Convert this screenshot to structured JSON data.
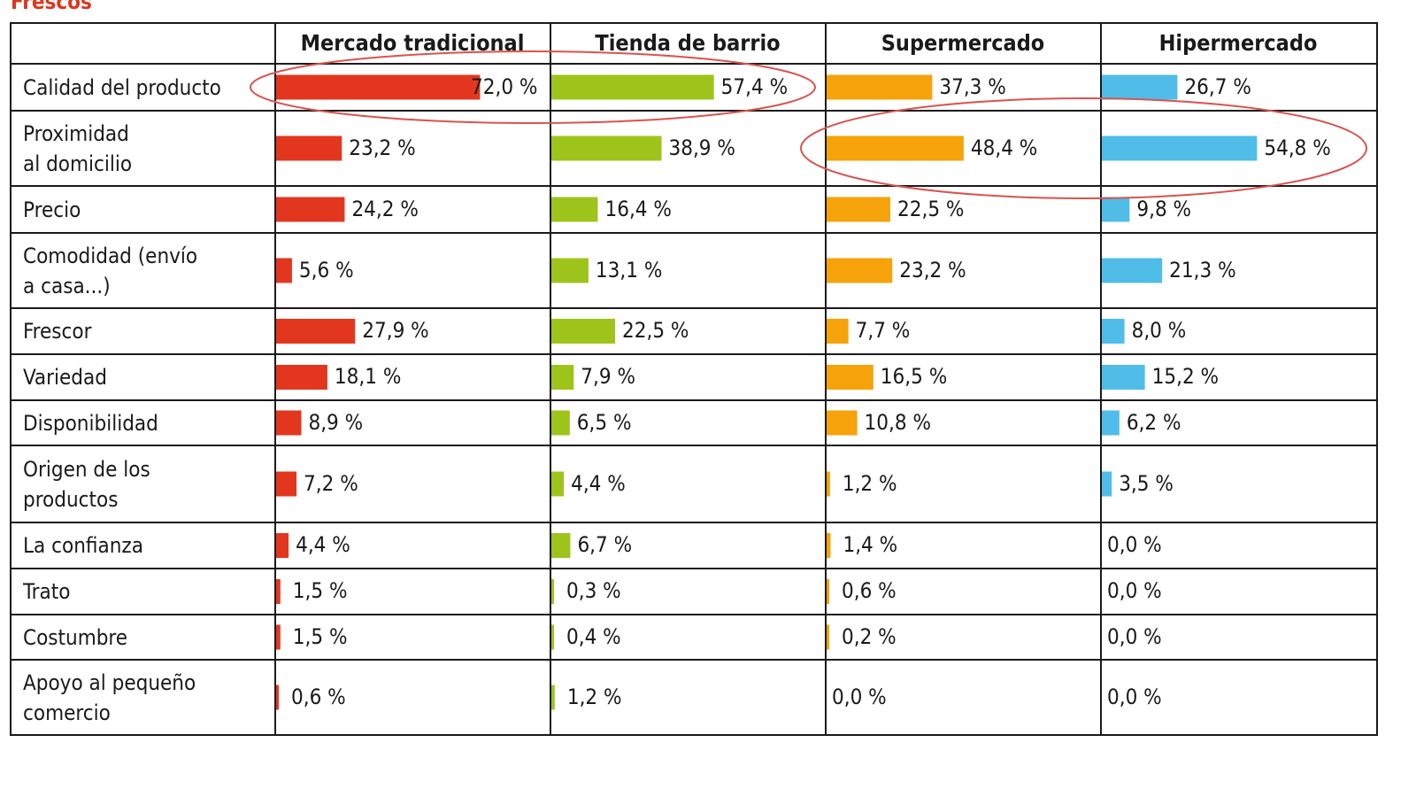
{
  "section_title": "Frescos",
  "chart_data": {
    "type": "bar",
    "title": "Frescos",
    "orientation": "horizontal",
    "categories": [
      "Calidad del producto",
      "Proximidad al domicilio",
      "Precio",
      "Comodidad (envío a casa...)",
      "Frescor",
      "Variedad",
      "Disponibilidad",
      "Origen de los productos",
      "La confianza",
      "Trato",
      "Costumbre",
      "Apoyo al pequeño comercio"
    ],
    "category_lines": [
      [
        "Calidad del producto"
      ],
      [
        "Proximidad",
        "al domicilio"
      ],
      [
        "Precio"
      ],
      [
        "Comodidad (envío",
        "a casa...)"
      ],
      [
        "Frescor"
      ],
      [
        "Variedad"
      ],
      [
        "Disponibilidad"
      ],
      [
        "Origen de los",
        "productos"
      ],
      [
        "La confianza"
      ],
      [
        "Trato"
      ],
      [
        "Costumbre"
      ],
      [
        "Apoyo al pequeño",
        "comercio"
      ]
    ],
    "series": [
      {
        "name": "Mercado tradicional",
        "color": "#e2371e",
        "values": [
          72.0,
          23.2,
          24.2,
          5.6,
          27.9,
          18.1,
          8.9,
          7.2,
          4.4,
          1.5,
          1.5,
          0.6
        ],
        "labels": [
          "72,0 %",
          "23,2 %",
          "24,2 %",
          "5,6 %",
          "27,9 %",
          "18,1 %",
          "8,9 %",
          "7,2 %",
          "4,4 %",
          "1,5 %",
          "1,5 %",
          "0,6 %"
        ]
      },
      {
        "name": "Tienda de barrio",
        "color": "#9ec41c",
        "values": [
          57.4,
          38.9,
          16.4,
          13.1,
          22.5,
          7.9,
          6.5,
          4.4,
          6.7,
          0.3,
          0.4,
          1.2
        ],
        "labels": [
          "57,4 %",
          "38,9 %",
          "16,4 %",
          "13,1 %",
          "22,5 %",
          "7,9 %",
          "6,5 %",
          "4,4 %",
          "6,7 %",
          "0,3 %",
          "0,4 %",
          "1,2 %"
        ]
      },
      {
        "name": "Supermercado",
        "color": "#f5a20b",
        "values": [
          37.3,
          48.4,
          22.5,
          23.2,
          7.7,
          16.5,
          10.8,
          1.2,
          1.4,
          0.6,
          0.2,
          0.0
        ],
        "labels": [
          "37,3 %",
          "48,4 %",
          "22,5 %",
          "23,2 %",
          "7,7 %",
          "16,5 %",
          "10,8 %",
          "1,2 %",
          "1,4 %",
          "0,6 %",
          "0,2 %",
          "0,0 %"
        ]
      },
      {
        "name": "Hipermercado",
        "color": "#4fbde8",
        "values": [
          26.7,
          54.8,
          9.8,
          21.3,
          8.0,
          15.2,
          6.2,
          3.5,
          0.0,
          0.0,
          0.0,
          0.0
        ],
        "labels": [
          "26,7 %",
          "54,8 %",
          "9,8 %",
          "21,3 %",
          "8,0 %",
          "15,2 %",
          "6,2 %",
          "3,5 %",
          "0,0 %",
          "0,0 %",
          "0,0 %",
          "0,0 %"
        ]
      }
    ],
    "highlights": [
      {
        "row": "Calidad del producto",
        "series": [
          "Mercado tradicional",
          "Tienda de barrio"
        ],
        "color": "#d9534f"
      },
      {
        "row": "Proximidad al domicilio",
        "series": [
          "Supermercado",
          "Hipermercado"
        ],
        "color": "#d9534f"
      }
    ],
    "xlim": [
      0,
      100
    ]
  }
}
